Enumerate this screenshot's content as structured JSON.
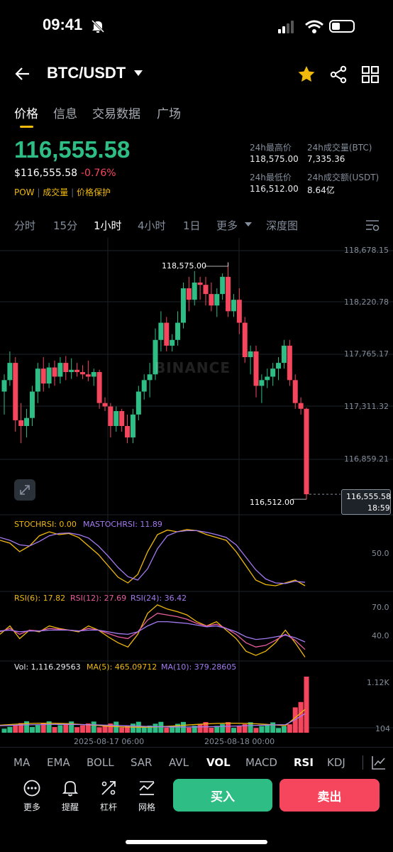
{
  "status_bar": {
    "time": "09:41"
  },
  "header": {
    "pair": "BTC/USDT"
  },
  "tabs": [
    {
      "label": "价格",
      "active": true
    },
    {
      "label": "信息",
      "active": false
    },
    {
      "label": "交易数据",
      "active": false
    },
    {
      "label": "广场",
      "active": false
    }
  ],
  "ticker": {
    "price": "116,555.58",
    "usd_price": "$116,555.58",
    "change": "-0.76%",
    "tags": [
      "POW",
      "成交量",
      "价格保护"
    ]
  },
  "stats": {
    "high_label": "24h最高价",
    "high": "118,575.00",
    "vol_btc_label": "24h成交量(BTC)",
    "vol_btc": "7,335.36",
    "low_label": "24h最低价",
    "low": "116,512.00",
    "vol_usdt_label": "24h成交额(USDT)",
    "vol_usdt": "8.64亿"
  },
  "intervals": [
    "分时",
    "15分",
    "1小时",
    "4小时",
    "1日",
    "更多",
    "深度图"
  ],
  "active_interval": "1小时",
  "watermark": "BINANCE",
  "colors": {
    "up": "#2ebd85",
    "down": "#f6465d",
    "accent": "#f0b90b",
    "buy": "#2ebd85",
    "sell": "#f6465d"
  },
  "chart_data": {
    "type": "candlestick",
    "price_axis": [
      "118,678.15",
      "118,220.78",
      "117,765.17",
      "117,311.32",
      "116,859.21"
    ],
    "high_marker": "118,575.00",
    "low_marker": "116,512.00",
    "last_price_tag": "116,555.58",
    "countdown": "18:59",
    "date_labels": [
      "2025-08-17 06:00",
      "2025-08-18 00:00"
    ],
    "ohlc": [
      [
        117450,
        117600,
        117250,
        117550
      ],
      [
        117550,
        117800,
        117500,
        117700
      ],
      [
        117700,
        117750,
        117100,
        117200
      ],
      [
        117200,
        117350,
        117000,
        117150
      ],
      [
        117150,
        117300,
        117050,
        117220
      ],
      [
        117220,
        117500,
        117150,
        117450
      ],
      [
        117450,
        117700,
        117350,
        117650
      ],
      [
        117650,
        117750,
        117450,
        117520
      ],
      [
        117520,
        117700,
        117480,
        117660
      ],
      [
        117660,
        117720,
        117500,
        117580
      ],
      [
        117580,
        117750,
        117520,
        117700
      ],
      [
        117700,
        117760,
        117550,
        117620
      ],
      [
        117620,
        117740,
        117560,
        117640
      ],
      [
        117640,
        117700,
        117580,
        117620
      ],
      [
        117620,
        117680,
        117560,
        117600
      ],
      [
        117600,
        117720,
        117540,
        117580
      ],
      [
        117580,
        117650,
        117500,
        117620
      ],
      [
        117620,
        117640,
        117300,
        117350
      ],
      [
        117350,
        117400,
        117280,
        117320
      ],
      [
        117320,
        117350,
        117050,
        117150
      ],
      [
        117150,
        117320,
        117100,
        117280
      ],
      [
        117280,
        117300,
        117100,
        117150
      ],
      [
        117150,
        117250,
        117000,
        117050
      ],
      [
        117050,
        117300,
        117000,
        117250
      ],
      [
        117250,
        117500,
        117200,
        117450
      ],
      [
        117450,
        117600,
        117380,
        117550
      ],
      [
        117550,
        117700,
        117400,
        117600
      ],
      [
        117600,
        118000,
        117550,
        117900
      ],
      [
        117900,
        118150,
        117800,
        118050
      ],
      [
        118050,
        118100,
        117800,
        117850
      ],
      [
        117850,
        117950,
        117800,
        117900
      ],
      [
        117900,
        118150,
        117850,
        118050
      ],
      [
        118050,
        118400,
        118000,
        118350
      ],
      [
        118350,
        118450,
        118150,
        118250
      ],
      [
        118250,
        118500,
        118200,
        118400
      ],
      [
        118400,
        118450,
        118250,
        118380
      ],
      [
        118380,
        118450,
        118200,
        118300
      ],
      [
        118300,
        118400,
        118150,
        118200
      ],
      [
        118200,
        118350,
        118100,
        118300
      ],
      [
        118300,
        118480,
        118250,
        118450
      ],
      [
        118450,
        118575,
        118100,
        118150
      ],
      [
        118150,
        118300,
        118100,
        118250
      ],
      [
        118250,
        118350,
        117950,
        118050
      ],
      [
        118050,
        118100,
        117700,
        117750
      ],
      [
        117750,
        117850,
        117600,
        117800
      ],
      [
        117800,
        117850,
        117400,
        117500
      ],
      [
        117500,
        117600,
        117350,
        117550
      ],
      [
        117550,
        117650,
        117480,
        117580
      ],
      [
        117580,
        117700,
        117500,
        117650
      ],
      [
        117650,
        117750,
        117550,
        117700
      ],
      [
        117700,
        117900,
        117650,
        117850
      ],
      [
        117850,
        117900,
        117500,
        117550
      ],
      [
        117550,
        117600,
        117300,
        117350
      ],
      [
        117350,
        117400,
        117250,
        117300
      ],
      [
        117300,
        117310,
        116512,
        116555
      ]
    ],
    "stochrsi": {
      "label": "STOCHRSI: 0.00",
      "ma_label": "MASTOCHRSI: 11.89",
      "level": "50.0"
    },
    "rsi": {
      "l6": "RSI(6): 17.82",
      "l12": "RSI(12): 27.69",
      "l24": "RSI(24): 36.42",
      "levels": [
        "70.0",
        "40.0"
      ]
    },
    "volume": {
      "vol": "Vol: 1,116.29563",
      "ma5": "MA(5): 465.09712",
      "ma10": "MA(10): 379.28605",
      "top": "1.12K",
      "bottom": "104"
    }
  },
  "indicators": [
    "MA",
    "EMA",
    "BOLL",
    "SAR",
    "AVL",
    "VOL",
    "MACD",
    "RSI",
    "KDJ"
  ],
  "active_indicators": [
    "VOL",
    "RSI"
  ],
  "bottom_actions": [
    {
      "label": "更多",
      "icon": "more-icon"
    },
    {
      "label": "提醒",
      "icon": "bell-icon"
    },
    {
      "label": "杠杆",
      "icon": "leverage-icon"
    },
    {
      "label": "网格",
      "icon": "grid-chart-icon"
    }
  ],
  "buy_label": "买入",
  "sell_label": "卖出"
}
